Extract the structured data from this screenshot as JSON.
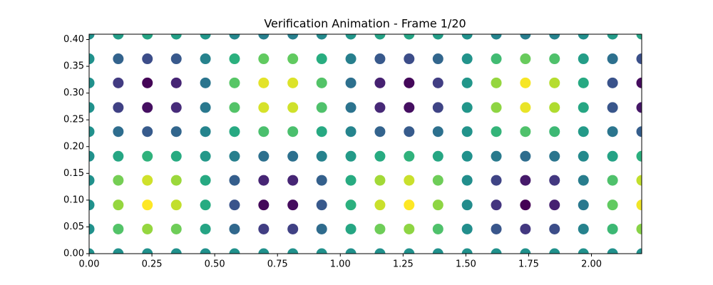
{
  "chart_data": {
    "type": "scatter",
    "title": "Verification Animation - Frame 1/20",
    "colormap": "viridis",
    "xlim": [
      0,
      2.2
    ],
    "ylim": [
      0,
      0.41
    ],
    "xticks": [
      {
        "value": 0,
        "label": "0.00"
      },
      {
        "value": 0.25,
        "label": "0.25"
      },
      {
        "value": 0.5,
        "label": "0.50"
      },
      {
        "value": 0.75,
        "label": "0.75"
      },
      {
        "value": 1,
        "label": "1.00"
      },
      {
        "value": 1.25,
        "label": "1.25"
      },
      {
        "value": 1.5,
        "label": "1.50"
      },
      {
        "value": 1.75,
        "label": "1.75"
      },
      {
        "value": 2,
        "label": "2.00"
      }
    ],
    "yticks": [
      {
        "value": 0,
        "label": "0.00"
      },
      {
        "value": 0.05,
        "label": "0.05"
      },
      {
        "value": 0.1,
        "label": "0.10"
      },
      {
        "value": 0.15,
        "label": "0.15"
      },
      {
        "value": 0.2,
        "label": "0.20"
      },
      {
        "value": 0.25,
        "label": "0.25"
      },
      {
        "value": 0.3,
        "label": "0.30"
      },
      {
        "value": 0.35,
        "label": "0.35"
      },
      {
        "value": 0.4,
        "label": "0.40"
      }
    ],
    "x": [
      0,
      0.116,
      0.232,
      0.347,
      0.463,
      0.579,
      0.695,
      0.811,
      0.926,
      1.042,
      1.158,
      1.274,
      1.389,
      1.505,
      1.621,
      1.737,
      1.853,
      1.968,
      2.084,
      2.2,
      0,
      0.116,
      0.232,
      0.347,
      0.463,
      0.579,
      0.695,
      0.811,
      0.926,
      1.042,
      1.158,
      1.274,
      1.389,
      1.505,
      1.621,
      1.737,
      1.853,
      1.968,
      2.084,
      2.2,
      0,
      0.116,
      0.232,
      0.347,
      0.463,
      0.579,
      0.695,
      0.811,
      0.926,
      1.042,
      1.158,
      1.274,
      1.389,
      1.505,
      1.621,
      1.737,
      1.853,
      1.968,
      2.084,
      2.2,
      0,
      0.116,
      0.232,
      0.347,
      0.463,
      0.579,
      0.695,
      0.811,
      0.926,
      1.042,
      1.158,
      1.274,
      1.389,
      1.505,
      1.621,
      1.737,
      1.853,
      1.968,
      2.084,
      2.2,
      0,
      0.116,
      0.232,
      0.347,
      0.463,
      0.579,
      0.695,
      0.811,
      0.926,
      1.042,
      1.158,
      1.274,
      1.389,
      1.505,
      1.621,
      1.737,
      1.853,
      1.968,
      2.084,
      2.2,
      0,
      0.116,
      0.232,
      0.347,
      0.463,
      0.579,
      0.695,
      0.811,
      0.926,
      1.042,
      1.158,
      1.274,
      1.389,
      1.505,
      1.621,
      1.737,
      1.853,
      1.968,
      2.084,
      2.2,
      0,
      0.116,
      0.232,
      0.347,
      0.463,
      0.579,
      0.695,
      0.811,
      0.926,
      1.042,
      1.158,
      1.274,
      1.389,
      1.505,
      1.621,
      1.737,
      1.853,
      1.968,
      2.084,
      2.2,
      0,
      0.116,
      0.232,
      0.347,
      0.463,
      0.579,
      0.695,
      0.811,
      0.926,
      1.042,
      1.158,
      1.274,
      1.389,
      1.505,
      1.621,
      1.737,
      1.853,
      1.968,
      2.084,
      2.2,
      0,
      0.116,
      0.232,
      0.347,
      0.463,
      0.579,
      0.695,
      0.811,
      0.926,
      1.042,
      1.158,
      1.274,
      1.389,
      1.505,
      1.621,
      1.737,
      1.853,
      1.968,
      2.084,
      2.2,
      0,
      0.116,
      0.232,
      0.347,
      0.463,
      0.579,
      0.695,
      0.811,
      0.926,
      1.042,
      1.158,
      1.274,
      1.389,
      1.505,
      1.621,
      1.737,
      1.853,
      1.968,
      2.084,
      2.2
    ],
    "y": [
      0,
      0,
      0,
      0,
      0,
      0,
      0,
      0,
      0,
      0,
      0,
      0,
      0,
      0,
      0,
      0,
      0,
      0,
      0,
      0,
      0.046,
      0.046,
      0.046,
      0.046,
      0.046,
      0.046,
      0.046,
      0.046,
      0.046,
      0.046,
      0.046,
      0.046,
      0.046,
      0.046,
      0.046,
      0.046,
      0.046,
      0.046,
      0.046,
      0.046,
      0.091,
      0.091,
      0.091,
      0.091,
      0.091,
      0.091,
      0.091,
      0.091,
      0.091,
      0.091,
      0.091,
      0.091,
      0.091,
      0.091,
      0.091,
      0.091,
      0.091,
      0.091,
      0.091,
      0.091,
      0.137,
      0.137,
      0.137,
      0.137,
      0.137,
      0.137,
      0.137,
      0.137,
      0.137,
      0.137,
      0.137,
      0.137,
      0.137,
      0.137,
      0.137,
      0.137,
      0.137,
      0.137,
      0.137,
      0.137,
      0.182,
      0.182,
      0.182,
      0.182,
      0.182,
      0.182,
      0.182,
      0.182,
      0.182,
      0.182,
      0.182,
      0.182,
      0.182,
      0.182,
      0.182,
      0.182,
      0.182,
      0.182,
      0.182,
      0.182,
      0.228,
      0.228,
      0.228,
      0.228,
      0.228,
      0.228,
      0.228,
      0.228,
      0.228,
      0.228,
      0.228,
      0.228,
      0.228,
      0.228,
      0.228,
      0.228,
      0.228,
      0.228,
      0.228,
      0.228,
      0.273,
      0.273,
      0.273,
      0.273,
      0.273,
      0.273,
      0.273,
      0.273,
      0.273,
      0.273,
      0.273,
      0.273,
      0.273,
      0.273,
      0.273,
      0.273,
      0.273,
      0.273,
      0.273,
      0.273,
      0.319,
      0.319,
      0.319,
      0.319,
      0.319,
      0.319,
      0.319,
      0.319,
      0.319,
      0.319,
      0.319,
      0.319,
      0.319,
      0.319,
      0.319,
      0.319,
      0.319,
      0.319,
      0.319,
      0.319,
      0.364,
      0.364,
      0.364,
      0.364,
      0.364,
      0.364,
      0.364,
      0.364,
      0.364,
      0.364,
      0.364,
      0.364,
      0.364,
      0.364,
      0.364,
      0.364,
      0.364,
      0.364,
      0.364,
      0.364,
      0.41,
      0.41,
      0.41,
      0.41,
      0.41,
      0.41,
      0.41,
      0.41,
      0.41,
      0.41,
      0.41,
      0.41,
      0.41,
      0.41,
      0.41,
      0.41,
      0.41,
      0.41,
      0.41,
      0.41
    ],
    "c": [
      0.5,
      0.5,
      0.5,
      0.5,
      0.5,
      0.5,
      0.5,
      0.5,
      0.5,
      0.5,
      0.5,
      0.5,
      0.5,
      0.5,
      0.5,
      0.5,
      0.5,
      0.5,
      0.5,
      0.5,
      0.5,
      0.72,
      0.83,
      0.77,
      0.58,
      0.34,
      0.19,
      0.2,
      0.35,
      0.59,
      0.77,
      0.82,
      0.71,
      0.49,
      0.27,
      0.17,
      0.24,
      0.44,
      0.67,
      0.81,
      0.5,
      0.83,
      0.99,
      0.9,
      0.61,
      0.26,
      0.03,
      0.04,
      0.28,
      0.63,
      0.91,
      0.99,
      0.82,
      0.48,
      0.16,
      0.01,
      0.1,
      0.4,
      0.75,
      0.97,
      0.5,
      0.78,
      0.92,
      0.84,
      0.6,
      0.3,
      0.11,
      0.11,
      0.31,
      0.61,
      0.85,
      0.91,
      0.77,
      0.49,
      0.21,
      0.08,
      0.17,
      0.42,
      0.71,
      0.9,
      0.5,
      0.59,
      0.64,
      0.61,
      0.53,
      0.43,
      0.37,
      0.37,
      0.44,
      0.54,
      0.61,
      0.64,
      0.59,
      0.5,
      0.41,
      0.36,
      0.39,
      0.47,
      0.57,
      0.63,
      0.5,
      0.36,
      0.29,
      0.33,
      0.45,
      0.6,
      0.7,
      0.7,
      0.6,
      0.45,
      0.32,
      0.29,
      0.37,
      0.51,
      0.65,
      0.71,
      0.67,
      0.54,
      0.39,
      0.3,
      0.5,
      0.2,
      0.05,
      0.13,
      0.4,
      0.72,
      0.93,
      0.92,
      0.71,
      0.38,
      0.12,
      0.05,
      0.21,
      0.52,
      0.82,
      0.96,
      0.87,
      0.59,
      0.27,
      0.07,
      0.5,
      0.18,
      0.02,
      0.11,
      0.39,
      0.73,
      0.95,
      0.94,
      0.72,
      0.37,
      0.1,
      0.03,
      0.19,
      0.52,
      0.83,
      0.98,
      0.88,
      0.6,
      0.26,
      0.04,
      0.5,
      0.32,
      0.24,
      0.28,
      0.44,
      0.63,
      0.75,
      0.75,
      0.62,
      0.43,
      0.28,
      0.24,
      0.33,
      0.51,
      0.68,
      0.76,
      0.71,
      0.55,
      0.37,
      0.25,
      0.5,
      0.55,
      0.58,
      0.56,
      0.52,
      0.46,
      0.43,
      0.43,
      0.47,
      0.52,
      0.57,
      0.58,
      0.55,
      0.5,
      0.45,
      0.42,
      0.44,
      0.49,
      0.54,
      0.57
    ]
  }
}
